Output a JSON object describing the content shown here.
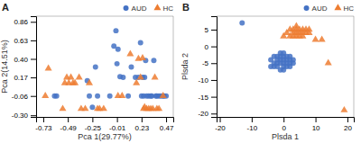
{
  "chart_data": [
    {
      "type": "scatter",
      "title": "A",
      "x_label": "Pca 1(29.77%)",
      "y_label": "Pca 2(14.51%)",
      "xlim": [
        -0.8,
        0.54
      ],
      "ylim": [
        -0.32,
        0.93
      ],
      "xticks": [
        -0.73,
        -0.49,
        -0.25,
        -0.01,
        0.23,
        0.47
      ],
      "yticks": [
        {
          "value": -0.3,
          "label": "-0.30"
        },
        -0.06,
        0.17,
        {
          "value": 0.4,
          "label": "0.40"
        },
        0.63,
        0.86
      ],
      "grid": false,
      "legend": "upper right",
      "series": [
        {
          "name": "AUD",
          "color": "#4472C4",
          "marker": "circle",
          "x": [
            -0.62,
            -0.6,
            -0.3,
            -0.28,
            -0.25,
            -0.22,
            -0.2,
            -0.08,
            -0.04,
            -0.02,
            -0.01,
            0.0,
            0.02,
            0.05,
            0.1,
            0.13,
            0.17,
            0.2,
            0.22,
            0.23,
            0.24,
            0.25,
            0.26,
            0.27,
            0.28,
            0.3,
            0.32,
            0.33,
            0.35,
            0.37,
            0.38,
            0.4,
            0.42,
            0.44,
            0.45,
            0.47
          ],
          "values": [
            -0.06,
            -0.06,
            0.13,
            -0.06,
            -0.2,
            0.3,
            -0.06,
            -0.06,
            0.56,
            0.75,
            0.34,
            0.52,
            0.18,
            0.17,
            -0.06,
            0.3,
            0.17,
            0.17,
            0.6,
            -0.06,
            0.17,
            -0.06,
            0.17,
            0.38,
            -0.06,
            -0.06,
            -0.06,
            -0.06,
            0.38,
            -0.06,
            -0.06,
            -0.06,
            -0.06,
            -0.06,
            -0.06,
            -0.06
          ]
        },
        {
          "name": "HC",
          "color": "#ED7D31",
          "marker": "triangle",
          "x": [
            -0.71,
            -0.68,
            -0.54,
            -0.52,
            -0.5,
            -0.48,
            -0.46,
            -0.44,
            -0.42,
            -0.38,
            -0.36,
            -0.32,
            -0.28,
            -0.2,
            -0.18,
            -0.14,
            0.0,
            0.04,
            0.12,
            0.18,
            0.2,
            0.22,
            0.24,
            0.25,
            0.26,
            0.28,
            0.3,
            0.32,
            0.34,
            0.36,
            0.38,
            0.4,
            0.44
          ],
          "values": [
            -0.06,
            0.28,
            -0.22,
            0.1,
            0.17,
            0.1,
            0.17,
            0.1,
            0.1,
            0.17,
            -0.22,
            -0.22,
            0.1,
            -0.22,
            -0.22,
            -0.22,
            -0.06,
            -0.06,
            0.46,
            0.1,
            0.4,
            0.17,
            0.41,
            -0.22,
            -0.2,
            -0.22,
            -0.22,
            -0.22,
            -0.22,
            0.17,
            -0.22,
            -0.22,
            -0.06
          ]
        }
      ]
    },
    {
      "type": "scatter",
      "title": "B",
      "x_label": "Plsda 1",
      "y_label": "Plsda 2",
      "xlim": [
        -21,
        22
      ],
      "ylim": [
        -21,
        9
      ],
      "xticks": [
        -20,
        -10,
        0,
        10,
        20
      ],
      "yticks": [
        -20,
        -15,
        -10,
        -5,
        0,
        5
      ],
      "grid": false,
      "legend": "upper right",
      "series": [
        {
          "name": "AUD",
          "color": "#4472C4",
          "marker": "circle",
          "x": [
            -13,
            -4,
            -4,
            -3,
            -3,
            -3,
            -2,
            -2,
            -2,
            -2,
            -1,
            -1,
            -1,
            -1,
            -1,
            0,
            0,
            0,
            0,
            0,
            0,
            1,
            1,
            1,
            1,
            2,
            2,
            2,
            2,
            3,
            3
          ],
          "values": [
            7,
            -4,
            -6,
            -3,
            -5,
            -6,
            -3,
            -4,
            -5,
            -6,
            -2,
            -3,
            -4,
            -5,
            -7,
            -2,
            -3,
            -4,
            -5,
            -6,
            -7,
            -3,
            -4,
            -5,
            -6,
            -3,
            -4,
            -5,
            -6,
            -4,
            -5
          ]
        },
        {
          "name": "HC",
          "color": "#ED7D31",
          "marker": "triangle",
          "x": [
            0,
            1,
            2,
            2,
            3,
            3,
            3,
            4,
            4,
            4,
            4,
            5,
            5,
            5,
            6,
            6,
            6,
            7,
            7,
            8,
            8,
            10,
            12,
            14,
            19
          ],
          "values": [
            3,
            4,
            3,
            5,
            3,
            4,
            5,
            3,
            4,
            5,
            6,
            3,
            4,
            5,
            3,
            4,
            5,
            4,
            5,
            4,
            5,
            2,
            2,
            -5,
            -19
          ]
        }
      ]
    }
  ]
}
